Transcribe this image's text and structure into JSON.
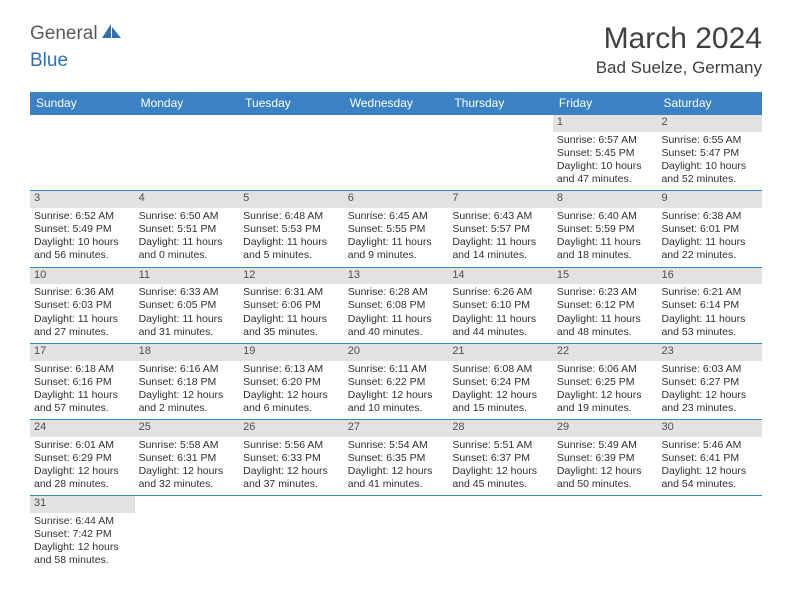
{
  "logo": {
    "part1": "General",
    "part2": "Blue"
  },
  "title": "March 2024",
  "location": "Bad Suelze, Germany",
  "colors": {
    "header_bg": "#3b82c4",
    "daybar_bg": "#e2e2e2",
    "text": "#303030",
    "title_text": "#404040",
    "logo_gray": "#5a5a5a",
    "logo_blue": "#2e6fb0"
  },
  "weekdays": [
    "Sunday",
    "Monday",
    "Tuesday",
    "Wednesday",
    "Thursday",
    "Friday",
    "Saturday"
  ],
  "weeks": [
    [
      {
        "num": "",
        "empty": true
      },
      {
        "num": "",
        "empty": true
      },
      {
        "num": "",
        "empty": true
      },
      {
        "num": "",
        "empty": true
      },
      {
        "num": "",
        "empty": true
      },
      {
        "num": "1",
        "sunrise": "Sunrise: 6:57 AM",
        "sunset": "Sunset: 5:45 PM",
        "day1": "Daylight: 10 hours",
        "day2": "and 47 minutes."
      },
      {
        "num": "2",
        "sunrise": "Sunrise: 6:55 AM",
        "sunset": "Sunset: 5:47 PM",
        "day1": "Daylight: 10 hours",
        "day2": "and 52 minutes."
      }
    ],
    [
      {
        "num": "3",
        "sunrise": "Sunrise: 6:52 AM",
        "sunset": "Sunset: 5:49 PM",
        "day1": "Daylight: 10 hours",
        "day2": "and 56 minutes."
      },
      {
        "num": "4",
        "sunrise": "Sunrise: 6:50 AM",
        "sunset": "Sunset: 5:51 PM",
        "day1": "Daylight: 11 hours",
        "day2": "and 0 minutes."
      },
      {
        "num": "5",
        "sunrise": "Sunrise: 6:48 AM",
        "sunset": "Sunset: 5:53 PM",
        "day1": "Daylight: 11 hours",
        "day2": "and 5 minutes."
      },
      {
        "num": "6",
        "sunrise": "Sunrise: 6:45 AM",
        "sunset": "Sunset: 5:55 PM",
        "day1": "Daylight: 11 hours",
        "day2": "and 9 minutes."
      },
      {
        "num": "7",
        "sunrise": "Sunrise: 6:43 AM",
        "sunset": "Sunset: 5:57 PM",
        "day1": "Daylight: 11 hours",
        "day2": "and 14 minutes."
      },
      {
        "num": "8",
        "sunrise": "Sunrise: 6:40 AM",
        "sunset": "Sunset: 5:59 PM",
        "day1": "Daylight: 11 hours",
        "day2": "and 18 minutes."
      },
      {
        "num": "9",
        "sunrise": "Sunrise: 6:38 AM",
        "sunset": "Sunset: 6:01 PM",
        "day1": "Daylight: 11 hours",
        "day2": "and 22 minutes."
      }
    ],
    [
      {
        "num": "10",
        "sunrise": "Sunrise: 6:36 AM",
        "sunset": "Sunset: 6:03 PM",
        "day1": "Daylight: 11 hours",
        "day2": "and 27 minutes."
      },
      {
        "num": "11",
        "sunrise": "Sunrise: 6:33 AM",
        "sunset": "Sunset: 6:05 PM",
        "day1": "Daylight: 11 hours",
        "day2": "and 31 minutes."
      },
      {
        "num": "12",
        "sunrise": "Sunrise: 6:31 AM",
        "sunset": "Sunset: 6:06 PM",
        "day1": "Daylight: 11 hours",
        "day2": "and 35 minutes."
      },
      {
        "num": "13",
        "sunrise": "Sunrise: 6:28 AM",
        "sunset": "Sunset: 6:08 PM",
        "day1": "Daylight: 11 hours",
        "day2": "and 40 minutes."
      },
      {
        "num": "14",
        "sunrise": "Sunrise: 6:26 AM",
        "sunset": "Sunset: 6:10 PM",
        "day1": "Daylight: 11 hours",
        "day2": "and 44 minutes."
      },
      {
        "num": "15",
        "sunrise": "Sunrise: 6:23 AM",
        "sunset": "Sunset: 6:12 PM",
        "day1": "Daylight: 11 hours",
        "day2": "and 48 minutes."
      },
      {
        "num": "16",
        "sunrise": "Sunrise: 6:21 AM",
        "sunset": "Sunset: 6:14 PM",
        "day1": "Daylight: 11 hours",
        "day2": "and 53 minutes."
      }
    ],
    [
      {
        "num": "17",
        "sunrise": "Sunrise: 6:18 AM",
        "sunset": "Sunset: 6:16 PM",
        "day1": "Daylight: 11 hours",
        "day2": "and 57 minutes."
      },
      {
        "num": "18",
        "sunrise": "Sunrise: 6:16 AM",
        "sunset": "Sunset: 6:18 PM",
        "day1": "Daylight: 12 hours",
        "day2": "and 2 minutes."
      },
      {
        "num": "19",
        "sunrise": "Sunrise: 6:13 AM",
        "sunset": "Sunset: 6:20 PM",
        "day1": "Daylight: 12 hours",
        "day2": "and 6 minutes."
      },
      {
        "num": "20",
        "sunrise": "Sunrise: 6:11 AM",
        "sunset": "Sunset: 6:22 PM",
        "day1": "Daylight: 12 hours",
        "day2": "and 10 minutes."
      },
      {
        "num": "21",
        "sunrise": "Sunrise: 6:08 AM",
        "sunset": "Sunset: 6:24 PM",
        "day1": "Daylight: 12 hours",
        "day2": "and 15 minutes."
      },
      {
        "num": "22",
        "sunrise": "Sunrise: 6:06 AM",
        "sunset": "Sunset: 6:25 PM",
        "day1": "Daylight: 12 hours",
        "day2": "and 19 minutes."
      },
      {
        "num": "23",
        "sunrise": "Sunrise: 6:03 AM",
        "sunset": "Sunset: 6:27 PM",
        "day1": "Daylight: 12 hours",
        "day2": "and 23 minutes."
      }
    ],
    [
      {
        "num": "24",
        "sunrise": "Sunrise: 6:01 AM",
        "sunset": "Sunset: 6:29 PM",
        "day1": "Daylight: 12 hours",
        "day2": "and 28 minutes."
      },
      {
        "num": "25",
        "sunrise": "Sunrise: 5:58 AM",
        "sunset": "Sunset: 6:31 PM",
        "day1": "Daylight: 12 hours",
        "day2": "and 32 minutes."
      },
      {
        "num": "26",
        "sunrise": "Sunrise: 5:56 AM",
        "sunset": "Sunset: 6:33 PM",
        "day1": "Daylight: 12 hours",
        "day2": "and 37 minutes."
      },
      {
        "num": "27",
        "sunrise": "Sunrise: 5:54 AM",
        "sunset": "Sunset: 6:35 PM",
        "day1": "Daylight: 12 hours",
        "day2": "and 41 minutes."
      },
      {
        "num": "28",
        "sunrise": "Sunrise: 5:51 AM",
        "sunset": "Sunset: 6:37 PM",
        "day1": "Daylight: 12 hours",
        "day2": "and 45 minutes."
      },
      {
        "num": "29",
        "sunrise": "Sunrise: 5:49 AM",
        "sunset": "Sunset: 6:39 PM",
        "day1": "Daylight: 12 hours",
        "day2": "and 50 minutes."
      },
      {
        "num": "30",
        "sunrise": "Sunrise: 5:46 AM",
        "sunset": "Sunset: 6:41 PM",
        "day1": "Daylight: 12 hours",
        "day2": "and 54 minutes."
      }
    ],
    [
      {
        "num": "31",
        "sunrise": "Sunrise: 6:44 AM",
        "sunset": "Sunset: 7:42 PM",
        "day1": "Daylight: 12 hours",
        "day2": "and 58 minutes."
      },
      {
        "num": "",
        "empty": true
      },
      {
        "num": "",
        "empty": true
      },
      {
        "num": "",
        "empty": true
      },
      {
        "num": "",
        "empty": true
      },
      {
        "num": "",
        "empty": true
      },
      {
        "num": "",
        "empty": true
      }
    ]
  ]
}
